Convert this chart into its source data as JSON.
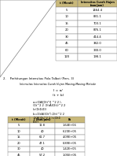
{
  "top_table_headers": [
    "t (Menit)",
    "Intensitas Curah Hujan\n(mm/jam)"
  ],
  "top_table_data": [
    [
      "5",
      "1464.4"
    ],
    [
      "10",
      "831.1"
    ],
    [
      "15",
      "703.1"
    ],
    [
      "20",
      "876.1"
    ],
    [
      "30",
      "414.4"
    ],
    [
      "45",
      "382.0"
    ],
    [
      "60",
      "330.0"
    ],
    [
      "120",
      "198.1"
    ]
  ],
  "title_section": "2.    Perhitungan Intensitas Pola Talbot (Pers. 3)",
  "subtitle": "Intensitas Intensitas Curah Hujan Masing-Masing Metode",
  "formula1": "I = a/",
  "formula2": "(t + b)",
  "eq_lines": [
    "a=(ΣAI[Σ(t²)] ^2 2 )-",
    "(Σt^2 2 ·Σ(tAI)Σ(t)^2 2",
    ")=(ΣtΣtΣI)",
    "b=Σ(tAI)Σ(t²)-Σ(t)^2 2",
    "·Σ(AI)Σt^2 2 )=(ΣtΣ",
    "(Σt))"
  ],
  "bottom_table_headers": [
    "t (Menit)",
    "I (mm/jam)",
    "Et"
  ],
  "bottom_table_data": [
    [
      "5",
      "11.8",
      "1.64E+06"
    ],
    [
      "10",
      "40",
      "6.20E+05"
    ],
    [
      "15",
      "61.7",
      "4.09E+05"
    ],
    [
      "20",
      "47.1",
      "6.89E+05"
    ],
    [
      "30",
      "40",
      "1.42E+05"
    ],
    [
      "45",
      "57.2",
      "1.05E+05"
    ],
    [
      "60",
      "40",
      "8.37E+04"
    ],
    [
      "120",
      "40.1",
      "2.46E+04"
    ]
  ],
  "header_color": "#c8b87a",
  "row_color_light": "#ffffff",
  "bg_color": "#ffffff",
  "font_size": 3.2
}
